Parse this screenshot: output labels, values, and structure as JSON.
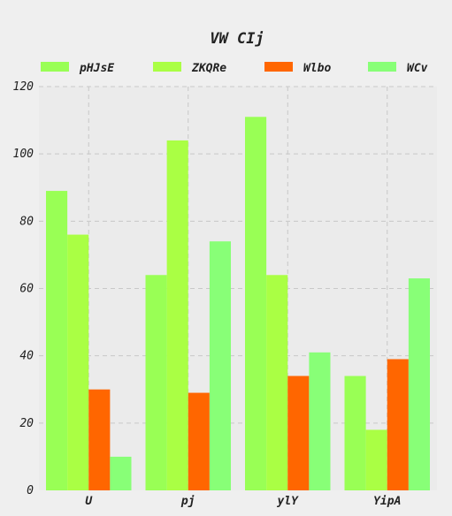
{
  "chart_data": {
    "type": "bar",
    "title": "VW CIj",
    "xlabel": "",
    "ylabel": "",
    "categories": [
      "U",
      "pj",
      "ylY",
      "YipA"
    ],
    "series": [
      {
        "name": "pHJsE",
        "color": "#99ff55",
        "values": [
          89,
          64,
          111,
          34
        ]
      },
      {
        "name": "ZKQRe",
        "color": "#aaff44",
        "values": [
          76,
          104,
          64,
          18
        ]
      },
      {
        "name": "Wlbo",
        "color": "#ff6600",
        "values": [
          30,
          29,
          34,
          39
        ]
      },
      {
        "name": "WCv",
        "color": "#88ff77",
        "values": [
          10,
          74,
          41,
          63
        ]
      }
    ],
    "ylim": [
      0,
      120
    ],
    "yticks": [
      0,
      20,
      40,
      60,
      80,
      100,
      120
    ],
    "grid": true,
    "legend_position": "top"
  }
}
